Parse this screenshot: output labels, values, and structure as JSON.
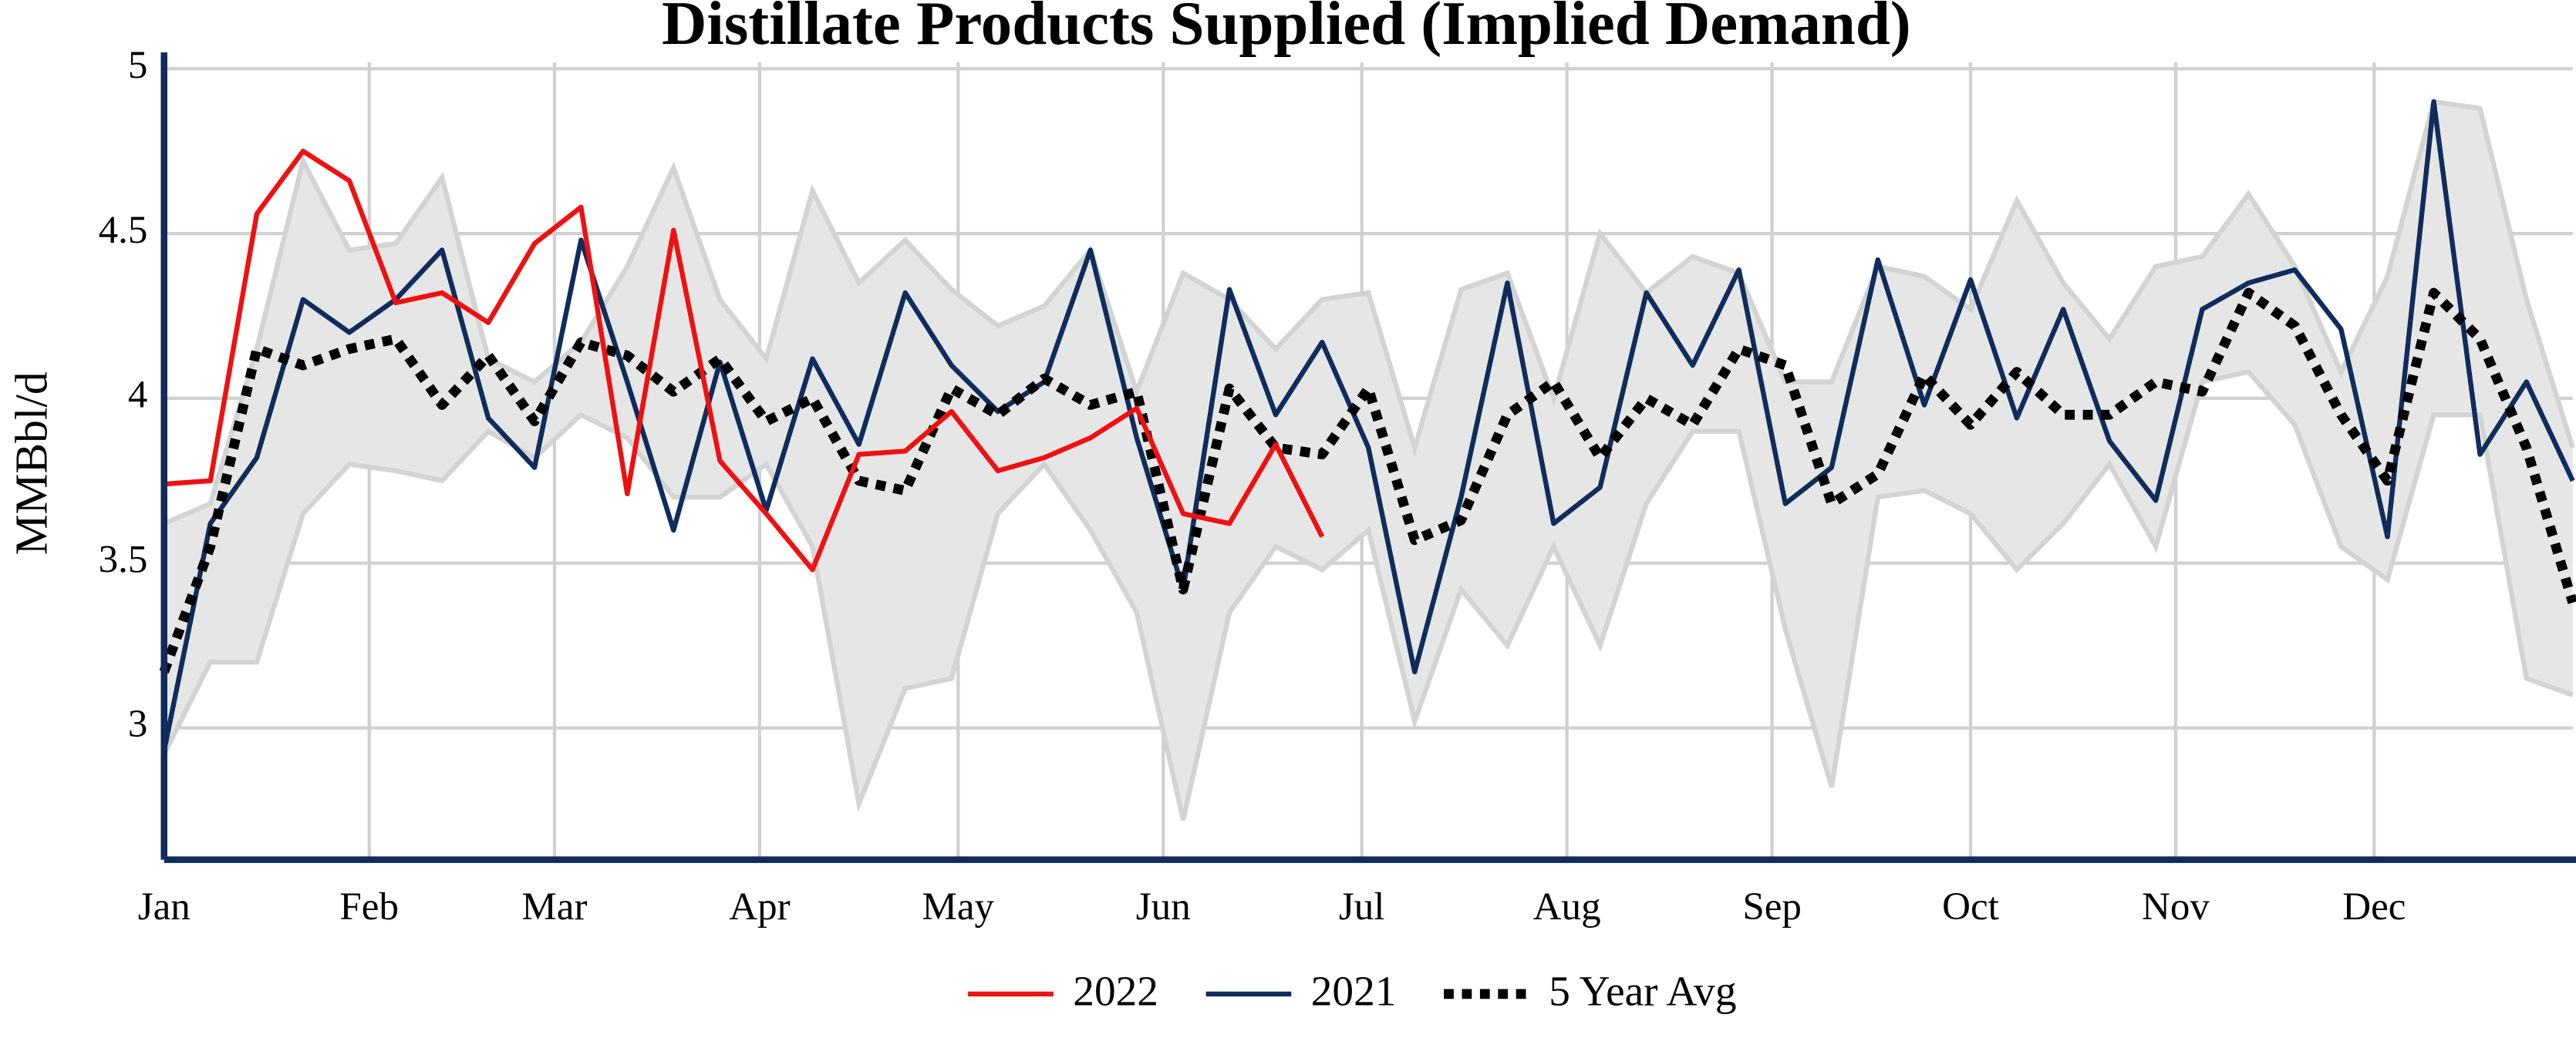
{
  "chart_data": {
    "type": "line",
    "title": "Distillate Products Supplied (Implied Demand)",
    "y_label": "MMBbl/d",
    "x": [
      0,
      7,
      14,
      21,
      28,
      35,
      42,
      49,
      56,
      63,
      70,
      77,
      84,
      91,
      98,
      105,
      112,
      119,
      126,
      133,
      140,
      147,
      154,
      161,
      168,
      175,
      182,
      189,
      196,
      203,
      210,
      217,
      224,
      231,
      238,
      245,
      252,
      259,
      266,
      273,
      280,
      287,
      294,
      301,
      308,
      315,
      322,
      329,
      336,
      343,
      350,
      357,
      364
    ],
    "xlim": [
      0,
      364
    ],
    "xticks": [
      {
        "value": 0,
        "label": "Jan"
      },
      {
        "value": 31,
        "label": "Feb"
      },
      {
        "value": 59,
        "label": "Mar"
      },
      {
        "value": 90,
        "label": "Apr"
      },
      {
        "value": 120,
        "label": "May"
      },
      {
        "value": 151,
        "label": "Jun"
      },
      {
        "value": 181,
        "label": "Jul"
      },
      {
        "value": 212,
        "label": "Aug"
      },
      {
        "value": 243,
        "label": "Sep"
      },
      {
        "value": 273,
        "label": "Oct"
      },
      {
        "value": 304,
        "label": "Nov"
      },
      {
        "value": 334,
        "label": "Dec"
      }
    ],
    "ylim": [
      2.6,
      5
    ],
    "yticks": [
      3,
      3.5,
      4,
      4.5,
      5
    ],
    "grid": true,
    "band": {
      "color": "#e6e6e6",
      "edge_color": "#d3d3d3",
      "upper": [
        3.62,
        3.68,
        4.15,
        4.72,
        4.45,
        4.47,
        4.67,
        4.12,
        4.05,
        4.17,
        4.4,
        4.7,
        4.3,
        4.12,
        4.63,
        4.35,
        4.48,
        4.33,
        4.22,
        4.28,
        4.45,
        4.02,
        4.38,
        4.3,
        4.15,
        4.3,
        4.32,
        3.85,
        4.33,
        4.38,
        4.0,
        4.5,
        4.32,
        4.43,
        4.38,
        4.05,
        4.05,
        4.4,
        4.37,
        4.27,
        4.6,
        4.35,
        4.18,
        4.4,
        4.43,
        4.62,
        4.4,
        4.08,
        4.37,
        4.9,
        4.88,
        4.3,
        3.85
      ],
      "lower": [
        2.92,
        3.2,
        3.2,
        3.65,
        3.8,
        3.78,
        3.75,
        3.9,
        3.82,
        3.95,
        3.88,
        3.7,
        3.7,
        3.8,
        3.55,
        2.77,
        3.12,
        3.15,
        3.65,
        3.8,
        3.6,
        3.35,
        2.72,
        3.35,
        3.55,
        3.48,
        3.6,
        3.02,
        3.42,
        3.25,
        3.55,
        3.25,
        3.68,
        3.9,
        3.9,
        3.3,
        2.82,
        3.7,
        3.72,
        3.65,
        3.48,
        3.62,
        3.8,
        3.55,
        4.05,
        4.08,
        3.92,
        3.55,
        3.45,
        3.95,
        3.95,
        3.15,
        3.1
      ]
    },
    "series": [
      {
        "name": "2022",
        "color": "#ee1111",
        "dash": "solid",
        "values": [
          3.74,
          3.75,
          4.56,
          4.75,
          4.66,
          4.29,
          4.32,
          4.23,
          4.47,
          4.58,
          3.71,
          4.51,
          3.81,
          3.65,
          3.48,
          3.83,
          3.84,
          3.96,
          3.78,
          3.82,
          3.88,
          3.97,
          3.65,
          3.62,
          3.86,
          3.58,
          null,
          null,
          null,
          null,
          null,
          null,
          null,
          null,
          null,
          null,
          null,
          null,
          null,
          null,
          null,
          null,
          null,
          null,
          null,
          null,
          null,
          null,
          null,
          null,
          null,
          null,
          null
        ]
      },
      {
        "name": "2021",
        "color": "#0f2c5c",
        "dash": "solid",
        "values": [
          2.93,
          3.62,
          3.82,
          4.3,
          4.2,
          4.3,
          4.45,
          3.94,
          3.79,
          4.48,
          4.05,
          3.6,
          4.11,
          3.66,
          4.12,
          3.86,
          4.32,
          4.1,
          3.96,
          4.05,
          4.45,
          3.88,
          3.42,
          4.33,
          3.95,
          4.17,
          3.85,
          3.17,
          3.7,
          4.35,
          3.62,
          3.73,
          4.32,
          4.1,
          4.39,
          3.68,
          3.79,
          4.42,
          3.98,
          4.36,
          3.94,
          4.27,
          3.87,
          3.69,
          4.27,
          4.35,
          4.39,
          4.21,
          3.58,
          4.9,
          3.83,
          4.05,
          3.75
        ]
      },
      {
        "name": "5 Year Avg",
        "color": "#000000",
        "dash": "dotted",
        "values": [
          3.17,
          3.55,
          4.15,
          4.1,
          4.15,
          4.18,
          3.98,
          4.13,
          3.93,
          4.17,
          4.13,
          4.02,
          4.12,
          3.93,
          4.0,
          3.75,
          3.72,
          4.03,
          3.95,
          4.06,
          3.98,
          4.02,
          3.42,
          4.03,
          3.85,
          3.83,
          4.03,
          3.57,
          3.63,
          3.95,
          4.05,
          3.82,
          4.0,
          3.92,
          4.15,
          4.1,
          3.68,
          3.77,
          4.07,
          3.92,
          4.08,
          3.95,
          3.95,
          4.05,
          4.02,
          4.32,
          4.22,
          3.95,
          3.75,
          4.32,
          4.18,
          3.85,
          3.38
        ]
      }
    ]
  }
}
